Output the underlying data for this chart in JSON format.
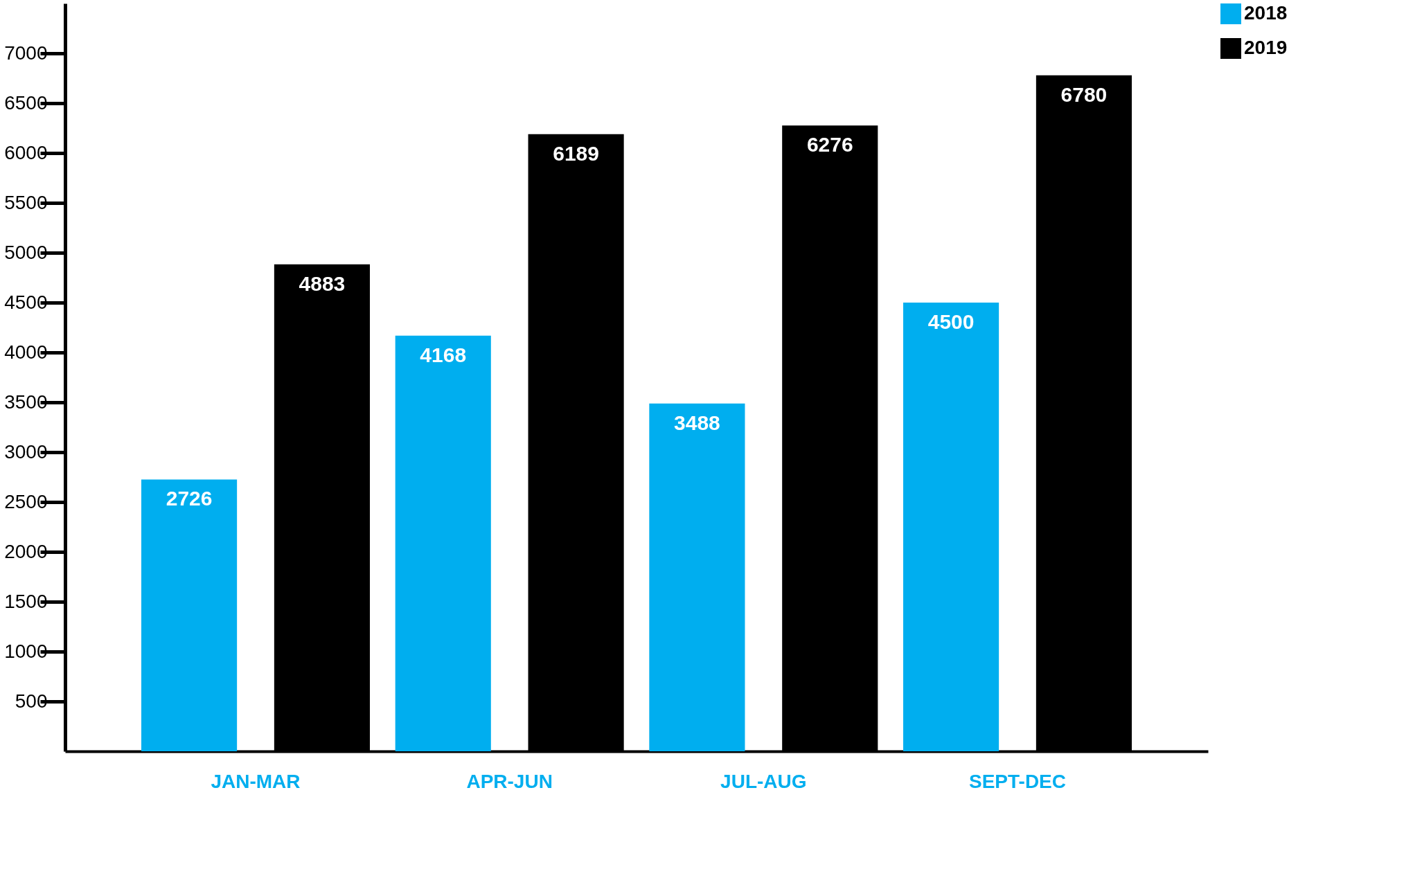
{
  "chart_data": {
    "type": "bar",
    "categories": [
      "JAN-MAR",
      "APR-JUN",
      "JUL-AUG",
      "SEPT-DEC"
    ],
    "series": [
      {
        "name": "2018",
        "color": "#00aeef",
        "values": [
          2726,
          4168,
          3488,
          4500
        ]
      },
      {
        "name": "2019",
        "color": "#000000",
        "values": [
          4883,
          6189,
          6276,
          6780
        ]
      }
    ],
    "ylim": [
      0,
      7500
    ],
    "yticks": [
      500,
      1000,
      1500,
      2000,
      2500,
      3000,
      3500,
      4000,
      4500,
      5000,
      5500,
      6000,
      6500,
      7000
    ],
    "data_labels": true,
    "grid": false,
    "legend": "right"
  }
}
